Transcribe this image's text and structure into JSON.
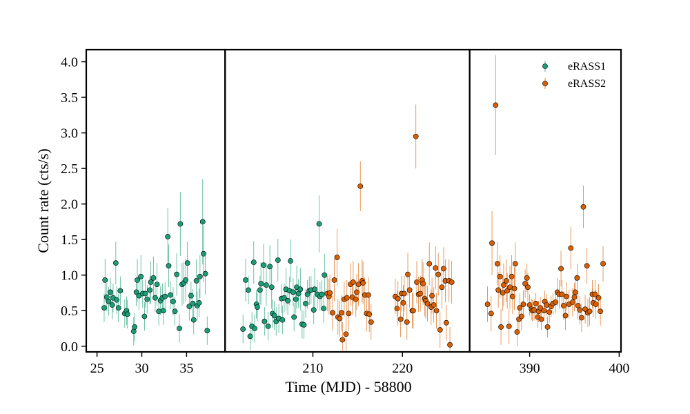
{
  "chart_data": {
    "type": "scatter",
    "xlabel": "Time (MJD) - 58800",
    "ylabel": "Count rate (cts/s)",
    "ylim": [
      -0.08,
      4.17
    ],
    "yticks": [
      {
        "value": 0,
        "label": "0.0"
      },
      0.5,
      {
        "value": 1,
        "label": "1.0"
      },
      1.5,
      {
        "value": 2,
        "label": "2.0"
      },
      2.5,
      {
        "value": 3,
        "label": "3.0"
      },
      3.5,
      {
        "value": 4,
        "label": "4.0"
      }
    ],
    "panels": [
      {
        "xlim": [
          23.8,
          39.3
        ],
        "xticks": [
          25,
          30,
          35
        ]
      },
      {
        "xlim": [
          200.2,
          227.5
        ],
        "xticks": [
          210,
          220
        ]
      },
      {
        "xlim": [
          383.3,
          400.2
        ],
        "xticks": [
          390,
          400
        ]
      }
    ],
    "legend": "upper right",
    "series": [
      {
        "name": "eRASS1",
        "color": "#1b9e77",
        "x": [
          25.8,
          25.9,
          26.1,
          26.3,
          26.5,
          26.7,
          26.8,
          27.1,
          27.2,
          27.4,
          27.6,
          28.1,
          28.3,
          28.4,
          29.1,
          29.2,
          29.4,
          29.5,
          29.7,
          29.9,
          30.1,
          30.3,
          30.4,
          30.6,
          30.9,
          31.0,
          31.3,
          31.5,
          31.7,
          31.9,
          32.1,
          32.3,
          32.4,
          32.6,
          32.9,
          33.0,
          33.2,
          33.5,
          33.7,
          33.9,
          34.2,
          34.3,
          34.5,
          34.7,
          34.9,
          35.1,
          35.3,
          35.5,
          35.7,
          35.8,
          36.1,
          36.2,
          36.4,
          36.5,
          36.8,
          36.9,
          37.1,
          37.3,
          202.2,
          202.5,
          202.8,
          203.0,
          203.2,
          203.4,
          203.5,
          203.7,
          203.8,
          204.1,
          204.2,
          204.5,
          204.6,
          204.8,
          205.0,
          205.2,
          205.4,
          205.5,
          205.7,
          205.9,
          206.1,
          206.2,
          206.5,
          206.6,
          206.8,
          207.0,
          207.2,
          207.4,
          207.5,
          207.8,
          207.9,
          208.1,
          208.2,
          208.4,
          208.6,
          208.8,
          209.0,
          209.2,
          209.4,
          209.6,
          209.8,
          210.1,
          210.2,
          210.5,
          210.7,
          210.8,
          211.0,
          211.2,
          211.3
        ],
        "values": [
          0.54,
          0.93,
          0.69,
          0.63,
          0.76,
          0.58,
          0.68,
          1.17,
          0.65,
          0.54,
          0.78,
          0.46,
          0.5,
          0.45,
          0.21,
          0.27,
          0.76,
          0.93,
          0.71,
          0.98,
          0.74,
          0.42,
          0.74,
          0.66,
          0.79,
          0.9,
          0.96,
          0.68,
          0.87,
          0.49,
          0.64,
          0.68,
          0.5,
          0.7,
          1.54,
          1.13,
          0.72,
          0.63,
          0.49,
          1.01,
          0.25,
          1.72,
          0.87,
          0.89,
          0.93,
          1.17,
          0.56,
          0.71,
          0.6,
          0.37,
          0.92,
          0.57,
          0.61,
          0.98,
          1.75,
          1.3,
          1.02,
          0.22,
          0.24,
          0.93,
          0.79,
          0.14,
          0.28,
          1.18,
          0.25,
          0.59,
          0.55,
          0.79,
          0.88,
          1.14,
          0.35,
          0.86,
          0.28,
          1.12,
          0.83,
          0.46,
          0.43,
          0.35,
          1.21,
          0.39,
          0.67,
          0.37,
          0.68,
          0.8,
          0.64,
          0.78,
          1.2,
          0.76,
          0.41,
          0.66,
          0.83,
          0.74,
          0.8,
          0.31,
          0.3,
          0.6,
          0.73,
          0.78,
          0.79,
          0.51,
          0.8,
          0.73,
          1.72,
          0.7,
          0.73,
          0.53,
          1.0
        ],
        "errors": [
          0.2,
          0.3,
          0.2,
          0.2,
          0.2,
          0.2,
          0.2,
          0.3,
          0.2,
          0.2,
          0.2,
          0.2,
          0.2,
          0.2,
          0.2,
          0.2,
          0.2,
          0.3,
          0.2,
          0.3,
          0.2,
          0.2,
          0.2,
          0.2,
          0.2,
          0.3,
          0.3,
          0.2,
          0.3,
          0.2,
          0.2,
          0.2,
          0.2,
          0.2,
          0.4,
          0.3,
          0.2,
          0.2,
          0.2,
          0.3,
          0.2,
          0.45,
          0.3,
          0.3,
          0.3,
          0.3,
          0.2,
          0.2,
          0.2,
          0.2,
          0.3,
          0.2,
          0.2,
          0.3,
          0.6,
          0.4,
          0.3,
          0.2,
          0.2,
          0.3,
          0.2,
          0.2,
          0.2,
          0.3,
          0.2,
          0.2,
          0.2,
          0.2,
          0.3,
          0.3,
          0.2,
          0.3,
          0.2,
          0.3,
          0.3,
          0.2,
          0.2,
          0.2,
          0.3,
          0.2,
          0.2,
          0.2,
          0.2,
          0.3,
          0.2,
          0.2,
          0.3,
          0.2,
          0.2,
          0.2,
          0.3,
          0.2,
          0.3,
          0.2,
          0.2,
          0.2,
          0.2,
          0.2,
          0.2,
          0.2,
          0.3,
          0.2,
          0.4,
          0.2,
          0.2,
          0.2,
          0.3
        ]
      },
      {
        "name": "eRASS2",
        "color": "#d95f02",
        "x": [
          211.6,
          211.8,
          211.9,
          212.2,
          212.4,
          212.7,
          212.8,
          213.0,
          213.2,
          213.3,
          213.5,
          213.7,
          213.8,
          214.0,
          214.2,
          214.4,
          214.5,
          214.8,
          214.9,
          215.1,
          215.3,
          215.5,
          215.6,
          215.8,
          216.0,
          216.2,
          216.3,
          216.5,
          219.2,
          219.4,
          219.5,
          219.8,
          219.9,
          220.1,
          220.2,
          220.5,
          220.6,
          220.8,
          221.1,
          221.2,
          221.5,
          221.6,
          221.8,
          222.0,
          222.2,
          222.3,
          222.5,
          222.6,
          222.8,
          223.0,
          223.2,
          223.3,
          223.5,
          223.7,
          223.8,
          224.0,
          224.2,
          224.4,
          224.6,
          224.8,
          224.9,
          225.2,
          225.3,
          225.5,
          385.3,
          385.7,
          385.8,
          386.2,
          386.4,
          386.5,
          386.7,
          386.8,
          387.0,
          387.1,
          387.4,
          387.5,
          387.7,
          387.8,
          388.0,
          388.1,
          388.3,
          388.4,
          388.6,
          388.8,
          388.9,
          389.1,
          389.3,
          389.5,
          389.7,
          389.8,
          390.0,
          390.2,
          390.3,
          390.5,
          390.7,
          390.9,
          391.0,
          391.2,
          391.3,
          391.6,
          391.7,
          391.9,
          392.0,
          392.2,
          392.4,
          392.6,
          392.9,
          393.1,
          393.3,
          393.5,
          393.6,
          393.8,
          394.0,
          394.1,
          394.4,
          394.6,
          394.8,
          395.0,
          395.1,
          395.3,
          395.4,
          395.6,
          395.8,
          396.0,
          396.2,
          396.4,
          396.5,
          396.7,
          397.0,
          397.1,
          397.3,
          397.4,
          397.7,
          397.9,
          398.2
        ],
        "values": [
          0.74,
          0.7,
          0.75,
          0.47,
          0.93,
          1.25,
          0.41,
          0.39,
          0.47,
          0.09,
          0.66,
          0.17,
          0.68,
          0.46,
          0.87,
          0.69,
          0.9,
          0.66,
          0.76,
          0.87,
          2.25,
          0.92,
          0.89,
          0.72,
          0.46,
          0.72,
          0.45,
          0.34,
          0.7,
          0.53,
          0.67,
          0.38,
          0.74,
          0.61,
          0.74,
          0.34,
          1.01,
          0.79,
          0.5,
          0.5,
          2.95,
          0.9,
          0.73,
          0.74,
          0.93,
          0.88,
          0.67,
          0.64,
          0.6,
          1.16,
          0.55,
          0.71,
          0.58,
          1.1,
          0.5,
          1.01,
          0.23,
          0.83,
          1.09,
          0.92,
          0.33,
          0.92,
          0.02,
          0.9,
          0.59,
          0.46,
          1.45,
          3.39,
          1.16,
          0.79,
          0.98,
          0.27,
          0.75,
          0.86,
          0.92,
          0.78,
          0.28,
          0.83,
          0.98,
          0.7,
          0.81,
          1.16,
          0.2,
          0.38,
          0.54,
          0.42,
          0.59,
          0.88,
          0.96,
          0.83,
          0.58,
          0.52,
          0.5,
          0.51,
          0.6,
          0.41,
          0.49,
          0.54,
          0.38,
          0.5,
          0.63,
          0.58,
          0.27,
          0.48,
          0.56,
          0.6,
          0.62,
          0.76,
          0.73,
          1.09,
          0.73,
          0.57,
          0.43,
          0.7,
          0.59,
          1.38,
          0.62,
          0.69,
          0.76,
          0.96,
          0.57,
          0.51,
          0.4,
          1.96,
          0.52,
          1.13,
          0.47,
          0.49,
          0.73,
          0.61,
          0.73,
          0.59,
          0.68,
          0.49,
          1.16
        ],
        "errors": [
          0.25,
          0.25,
          0.25,
          0.25,
          0.3,
          0.4,
          0.25,
          0.25,
          0.25,
          0.25,
          0.25,
          0.25,
          0.25,
          0.25,
          0.3,
          0.25,
          0.3,
          0.25,
          0.25,
          0.3,
          0.35,
          0.3,
          0.3,
          0.25,
          0.25,
          0.25,
          0.25,
          0.25,
          0.25,
          0.25,
          0.25,
          0.25,
          0.25,
          0.25,
          0.25,
          0.25,
          0.3,
          0.25,
          0.25,
          0.25,
          0.45,
          0.3,
          0.25,
          0.25,
          0.3,
          0.3,
          0.25,
          0.25,
          0.25,
          0.3,
          0.25,
          0.25,
          0.25,
          0.3,
          0.25,
          0.3,
          0.25,
          0.3,
          0.3,
          0.3,
          0.25,
          0.3,
          0.25,
          0.3,
          0.25,
          0.25,
          0.45,
          0.7,
          0.3,
          0.25,
          0.3,
          0.25,
          0.25,
          0.3,
          0.3,
          0.25,
          0.25,
          0.3,
          0.3,
          0.25,
          0.3,
          0.3,
          0.2,
          0.2,
          0.2,
          0.2,
          0.2,
          0.2,
          0.2,
          0.2,
          0.15,
          0.15,
          0.15,
          0.15,
          0.15,
          0.15,
          0.15,
          0.15,
          0.15,
          0.15,
          0.15,
          0.15,
          0.15,
          0.15,
          0.15,
          0.15,
          0.15,
          0.2,
          0.2,
          0.25,
          0.2,
          0.2,
          0.2,
          0.2,
          0.2,
          0.3,
          0.2,
          0.2,
          0.2,
          0.2,
          0.2,
          0.2,
          0.2,
          0.3,
          0.2,
          0.25,
          0.2,
          0.2,
          0.2,
          0.2,
          0.2,
          0.2,
          0.2,
          0.2,
          0.25
        ]
      }
    ]
  }
}
